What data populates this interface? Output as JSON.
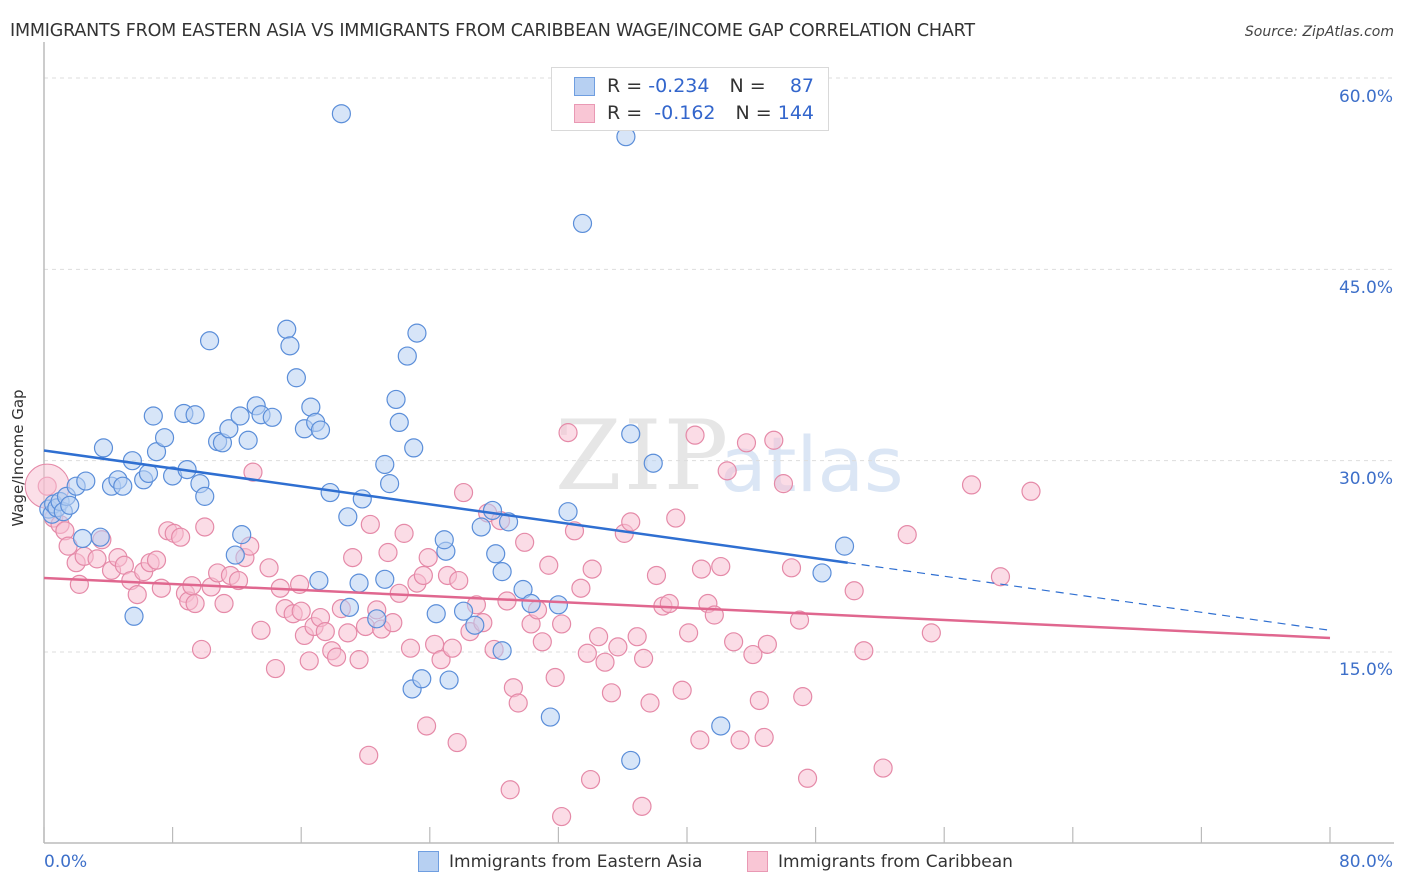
{
  "header": {
    "title": "IMMIGRANTS FROM EASTERN ASIA VS IMMIGRANTS FROM CARIBBEAN WAGE/INCOME GAP CORRELATION CHART",
    "source": "Source: ZipAtlas.com"
  },
  "watermark": {
    "zip": "ZIP",
    "atlas": "atlas"
  },
  "legend": {
    "rows": [
      {
        "r_label": "R =",
        "r_value": "-0.234",
        "n_label": "N =",
        "n_value": "87"
      },
      {
        "r_label": "R =",
        "r_value": "-0.162",
        "n_label": "N =",
        "n_value": "144"
      }
    ],
    "bottom": [
      "Immigrants from Eastern Asia",
      "Immigrants from Caribbean"
    ]
  },
  "axis": {
    "x_min_label": "0.0%",
    "x_max_label": "80.0%",
    "y_ticks": [
      "60.0%",
      "45.0%",
      "30.0%",
      "15.0%"
    ],
    "ylabel": "Wage/Income Gap"
  },
  "colors": {
    "blue_fill": "#b7d0f2",
    "blue_stroke": "#5b8ed9",
    "blue_line": "#2f6fd1",
    "pink_fill": "#f7c0d1",
    "pink_stroke": "#e58aa8",
    "pink_line": "#e0678f",
    "tick_text": "#3d6fc9"
  },
  "chart_data": {
    "type": "scatter",
    "title": "IMMIGRANTS FROM EASTERN ASIA VS IMMIGRANTS FROM CARIBBEAN WAGE/INCOME GAP CORRELATION CHART",
    "xlabel": "",
    "ylabel": "Wage/Income Gap",
    "xlim": [
      0,
      80
    ],
    "ylim": [
      0,
      63
    ],
    "x_ticks": [
      0,
      80
    ],
    "y_ticks": [
      15,
      30,
      45,
      60
    ],
    "grid": true,
    "legend_position": "top-center",
    "series": [
      {
        "name": "Immigrants from Eastern Asia",
        "R": -0.234,
        "N": 87,
        "trend": {
          "x0": 0,
          "y0": 30.8,
          "x1": 50.0,
          "y1": 22.0,
          "dashed_to_x": 80,
          "dashed_to_y": 16.7
        },
        "points": [
          [
            0.3,
            26.2
          ],
          [
            0.5,
            25.8
          ],
          [
            0.6,
            26.6
          ],
          [
            0.8,
            26.3
          ],
          [
            1.0,
            26.8
          ],
          [
            1.2,
            26.0
          ],
          [
            1.4,
            27.2
          ],
          [
            1.6,
            26.5
          ],
          [
            2.0,
            28.0
          ],
          [
            2.6,
            28.4
          ],
          [
            2.4,
            23.9
          ],
          [
            3.7,
            31.0
          ],
          [
            4.2,
            28.0
          ],
          [
            4.6,
            28.5
          ],
          [
            4.9,
            28.0
          ],
          [
            5.5,
            30.0
          ],
          [
            6.2,
            28.5
          ],
          [
            6.5,
            29.0
          ],
          [
            6.8,
            33.5
          ],
          [
            7.0,
            30.7
          ],
          [
            7.5,
            31.8
          ],
          [
            8.0,
            28.8
          ],
          [
            8.7,
            33.7
          ],
          [
            8.9,
            29.3
          ],
          [
            9.4,
            33.6
          ],
          [
            9.7,
            28.2
          ],
          [
            10.0,
            27.2
          ],
          [
            10.3,
            39.4
          ],
          [
            10.8,
            31.5
          ],
          [
            11.1,
            31.4
          ],
          [
            11.5,
            32.5
          ],
          [
            12.2,
            33.5
          ],
          [
            12.7,
            31.6
          ],
          [
            13.2,
            34.3
          ],
          [
            13.5,
            33.6
          ],
          [
            14.2,
            33.4
          ],
          [
            15.1,
            40.3
          ],
          [
            15.3,
            39.0
          ],
          [
            15.7,
            36.5
          ],
          [
            16.2,
            32.5
          ],
          [
            16.6,
            34.2
          ],
          [
            16.9,
            33.0
          ],
          [
            17.2,
            32.4
          ],
          [
            17.8,
            27.5
          ],
          [
            18.5,
            57.2
          ],
          [
            18.9,
            25.6
          ],
          [
            19.8,
            27.0
          ],
          [
            21.2,
            29.7
          ],
          [
            21.5,
            28.2
          ],
          [
            21.9,
            34.8
          ],
          [
            22.1,
            33.0
          ],
          [
            22.6,
            38.2
          ],
          [
            23.0,
            31.0
          ],
          [
            23.2,
            40.0
          ],
          [
            19.0,
            18.5
          ],
          [
            19.6,
            20.4
          ],
          [
            20.7,
            17.6
          ],
          [
            21.2,
            20.7
          ],
          [
            17.1,
            20.6
          ],
          [
            11.9,
            22.6
          ],
          [
            12.3,
            24.2
          ],
          [
            5.6,
            17.8
          ],
          [
            3.5,
            24.0
          ],
          [
            24.4,
            18.0
          ],
          [
            25.0,
            22.9
          ],
          [
            24.9,
            23.8
          ],
          [
            25.2,
            12.8
          ],
          [
            22.9,
            12.1
          ],
          [
            23.5,
            12.9
          ],
          [
            26.1,
            18.2
          ],
          [
            26.8,
            17.1
          ],
          [
            27.2,
            24.8
          ],
          [
            27.9,
            26.1
          ],
          [
            28.1,
            22.7
          ],
          [
            28.5,
            21.3
          ],
          [
            28.9,
            25.2
          ],
          [
            29.8,
            19.9
          ],
          [
            30.3,
            18.8
          ],
          [
            32.0,
            18.7
          ],
          [
            32.6,
            26.0
          ],
          [
            33.5,
            48.6
          ],
          [
            36.2,
            55.4
          ],
          [
            36.5,
            32.1
          ],
          [
            37.9,
            29.8
          ],
          [
            31.5,
            9.9
          ],
          [
            36.5,
            6.5
          ],
          [
            42.1,
            9.2
          ],
          [
            48.4,
            21.2
          ],
          [
            49.8,
            23.3
          ],
          [
            28.5,
            15.1
          ]
        ]
      },
      {
        "name": "Immigrants from Caribbean",
        "R": -0.162,
        "N": 144,
        "trend": {
          "x0": 0,
          "y0": 20.8,
          "x1": 80,
          "y1": 16.1
        },
        "points": [
          [
            0.2,
            28.0
          ],
          [
            0.6,
            25.5
          ],
          [
            1.0,
            25.0
          ],
          [
            1.3,
            24.5
          ],
          [
            1.5,
            23.3
          ],
          [
            2.0,
            22.0
          ],
          [
            2.2,
            20.3
          ],
          [
            2.5,
            22.5
          ],
          [
            3.3,
            22.3
          ],
          [
            3.6,
            23.8
          ],
          [
            4.2,
            21.4
          ],
          [
            4.6,
            22.4
          ],
          [
            5.0,
            21.8
          ],
          [
            5.4,
            20.6
          ],
          [
            5.8,
            19.5
          ],
          [
            6.2,
            21.3
          ],
          [
            6.6,
            22.0
          ],
          [
            7.0,
            22.2
          ],
          [
            7.3,
            20.0
          ],
          [
            7.7,
            24.5
          ],
          [
            8.1,
            24.3
          ],
          [
            8.5,
            24.0
          ],
          [
            8.8,
            19.6
          ],
          [
            9.0,
            19.0
          ],
          [
            9.4,
            18.8
          ],
          [
            9.8,
            15.2
          ],
          [
            10.0,
            24.8
          ],
          [
            10.4,
            20.1
          ],
          [
            10.8,
            21.2
          ],
          [
            11.2,
            18.8
          ],
          [
            11.6,
            21.0
          ],
          [
            12.1,
            20.6
          ],
          [
            12.5,
            22.4
          ],
          [
            12.8,
            23.3
          ],
          [
            13.0,
            29.1
          ],
          [
            13.5,
            16.7
          ],
          [
            14.0,
            21.6
          ],
          [
            14.4,
            13.7
          ],
          [
            14.7,
            20.0
          ],
          [
            15.0,
            18.4
          ],
          [
            15.5,
            18.0
          ],
          [
            15.9,
            20.3
          ],
          [
            16.2,
            16.3
          ],
          [
            16.5,
            14.3
          ],
          [
            16.8,
            17.0
          ],
          [
            17.2,
            17.7
          ],
          [
            17.5,
            16.6
          ],
          [
            17.9,
            15.1
          ],
          [
            18.2,
            14.6
          ],
          [
            18.5,
            18.4
          ],
          [
            18.9,
            16.5
          ],
          [
            19.2,
            22.4
          ],
          [
            19.6,
            14.4
          ],
          [
            20.0,
            17.0
          ],
          [
            20.3,
            25.0
          ],
          [
            20.7,
            18.3
          ],
          [
            21.0,
            16.8
          ],
          [
            21.4,
            22.8
          ],
          [
            21.7,
            17.3
          ],
          [
            22.1,
            19.6
          ],
          [
            22.4,
            24.3
          ],
          [
            22.8,
            15.3
          ],
          [
            23.2,
            20.4
          ],
          [
            23.6,
            21.0
          ],
          [
            23.9,
            22.4
          ],
          [
            24.3,
            15.6
          ],
          [
            24.7,
            14.4
          ],
          [
            25.1,
            21.0
          ],
          [
            25.4,
            15.3
          ],
          [
            25.8,
            20.6
          ],
          [
            26.1,
            27.5
          ],
          [
            26.5,
            16.6
          ],
          [
            26.9,
            18.7
          ],
          [
            27.3,
            17.3
          ],
          [
            27.6,
            25.9
          ],
          [
            28.0,
            15.2
          ],
          [
            28.4,
            25.3
          ],
          [
            28.8,
            19.0
          ],
          [
            29.2,
            12.2
          ],
          [
            29.5,
            11.0
          ],
          [
            29.9,
            23.6
          ],
          [
            30.3,
            17.2
          ],
          [
            30.7,
            18.3
          ],
          [
            31.0,
            15.8
          ],
          [
            31.4,
            21.8
          ],
          [
            31.8,
            13.0
          ],
          [
            32.2,
            17.2
          ],
          [
            32.6,
            32.2
          ],
          [
            33.0,
            24.5
          ],
          [
            33.4,
            20.0
          ],
          [
            33.8,
            14.9
          ],
          [
            34.1,
            21.5
          ],
          [
            34.5,
            16.2
          ],
          [
            34.9,
            14.2
          ],
          [
            35.3,
            11.8
          ],
          [
            35.7,
            15.4
          ],
          [
            36.1,
            24.3
          ],
          [
            36.5,
            25.2
          ],
          [
            36.9,
            16.2
          ],
          [
            37.3,
            14.5
          ],
          [
            37.7,
            11.0
          ],
          [
            38.1,
            21.0
          ],
          [
            38.5,
            18.6
          ],
          [
            38.9,
            18.8
          ],
          [
            39.3,
            25.5
          ],
          [
            39.7,
            12.0
          ],
          [
            40.1,
            16.5
          ],
          [
            40.5,
            32.0
          ],
          [
            40.9,
            21.5
          ],
          [
            41.3,
            18.8
          ],
          [
            41.7,
            17.9
          ],
          [
            42.1,
            21.7
          ],
          [
            42.5,
            29.2
          ],
          [
            42.9,
            15.8
          ],
          [
            43.3,
            8.1
          ],
          [
            43.7,
            31.4
          ],
          [
            44.1,
            14.8
          ],
          [
            44.5,
            11.2
          ],
          [
            45.0,
            15.6
          ],
          [
            45.4,
            31.6
          ],
          [
            46.0,
            28.2
          ],
          [
            46.5,
            21.6
          ],
          [
            47.0,
            17.5
          ],
          [
            47.5,
            5.1
          ],
          [
            20.2,
            6.9
          ],
          [
            23.8,
            9.2
          ],
          [
            25.7,
            7.9
          ],
          [
            29.0,
            4.2
          ],
          [
            32.2,
            2.1
          ],
          [
            34.0,
            5.0
          ],
          [
            37.2,
            2.9
          ],
          [
            40.8,
            8.1
          ],
          [
            50.4,
            19.8
          ],
          [
            51.0,
            15.1
          ],
          [
            52.2,
            5.9
          ],
          [
            53.7,
            24.2
          ],
          [
            55.2,
            16.5
          ],
          [
            57.7,
            28.1
          ],
          [
            59.5,
            20.9
          ],
          [
            61.4,
            27.6
          ],
          [
            44.8,
            8.3
          ],
          [
            47.2,
            11.5
          ],
          [
            16.0,
            18.2
          ],
          [
            9.2,
            20.2
          ]
        ]
      }
    ]
  }
}
